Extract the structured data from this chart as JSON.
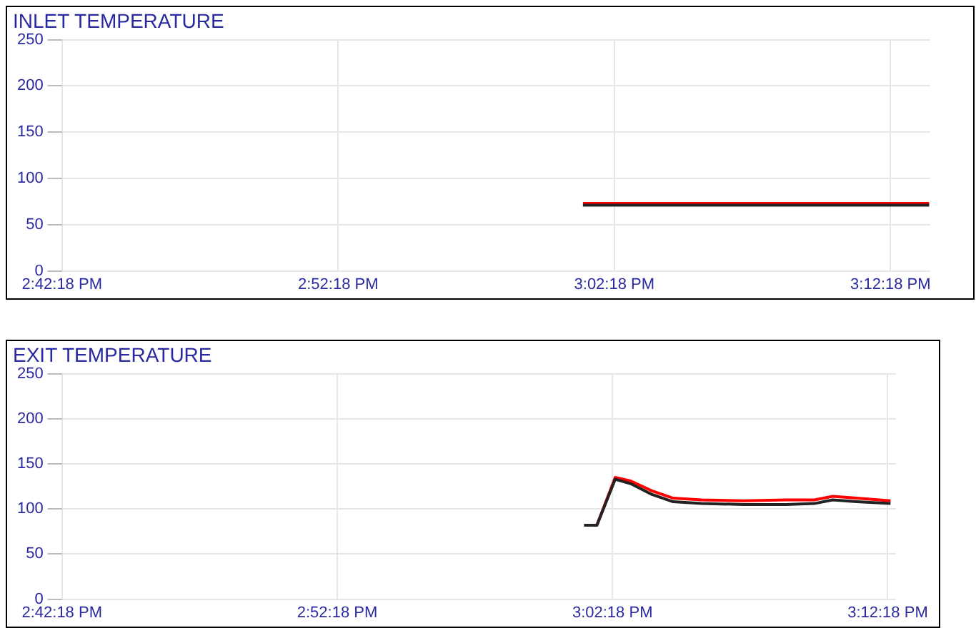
{
  "chart_data": [
    {
      "type": "line",
      "title": "INLET TEMPERATURE",
      "xlim": [
        14.705,
        15.229
      ],
      "xticks": [
        {
          "value": 14.705,
          "label": "2:42:18 PM"
        },
        {
          "value": 14.87167,
          "label": "2:52:18 PM"
        },
        {
          "value": 15.03833,
          "label": "3:02:18 PM"
        },
        {
          "value": 15.205,
          "label": "3:12:18 PM"
        }
      ],
      "ylim": [
        0,
        250
      ],
      "yticks": [
        0,
        50,
        100,
        150,
        200,
        250
      ],
      "grid": true,
      "marker": "none",
      "line_style": "solid",
      "series": [
        {
          "color": "#222222",
          "x": [
            15.0194,
            15.06,
            15.1,
            15.14,
            15.18,
            15.2283
          ],
          "values": [
            71,
            71,
            71,
            71,
            71,
            71
          ]
        },
        {
          "color": "#ff0000",
          "x": [
            15.0194,
            15.06,
            15.1,
            15.14,
            15.18,
            15.2283
          ],
          "values": [
            73,
            73,
            73,
            73,
            73,
            73
          ]
        }
      ]
    },
    {
      "type": "line",
      "title": "EXIT TEMPERATURE",
      "xlim": [
        14.705,
        15.21
      ],
      "xticks": [
        {
          "value": 14.705,
          "label": "2:42:18 PM"
        },
        {
          "value": 14.87167,
          "label": "2:52:18 PM"
        },
        {
          "value": 15.03833,
          "label": "3:02:18 PM"
        },
        {
          "value": 15.205,
          "label": "3:12:18 PM"
        }
      ],
      "ylim": [
        0,
        250
      ],
      "yticks": [
        0,
        50,
        100,
        150,
        200,
        250
      ],
      "grid": true,
      "marker": "none",
      "line_style": "solid",
      "series": [
        {
          "color": "#222222",
          "x": [
            15.0212,
            15.0289,
            15.04,
            15.0494,
            15.0623,
            15.0751,
            15.0922,
            15.1178,
            15.1435,
            15.1606,
            15.1717,
            15.1862,
            15.2067
          ],
          "values": [
            82,
            82,
            133,
            128,
            116,
            108,
            106,
            105,
            105,
            106,
            110,
            108,
            106
          ]
        },
        {
          "color": "#ff0000",
          "x": [
            15.0212,
            15.0289,
            15.04,
            15.0494,
            15.0623,
            15.0751,
            15.0922,
            15.1178,
            15.1435,
            15.1606,
            15.1717,
            15.1862,
            15.2067
          ],
          "values": [
            82,
            82,
            135,
            131,
            120,
            112,
            110,
            109,
            110,
            110,
            114,
            112,
            109
          ]
        }
      ]
    }
  ]
}
